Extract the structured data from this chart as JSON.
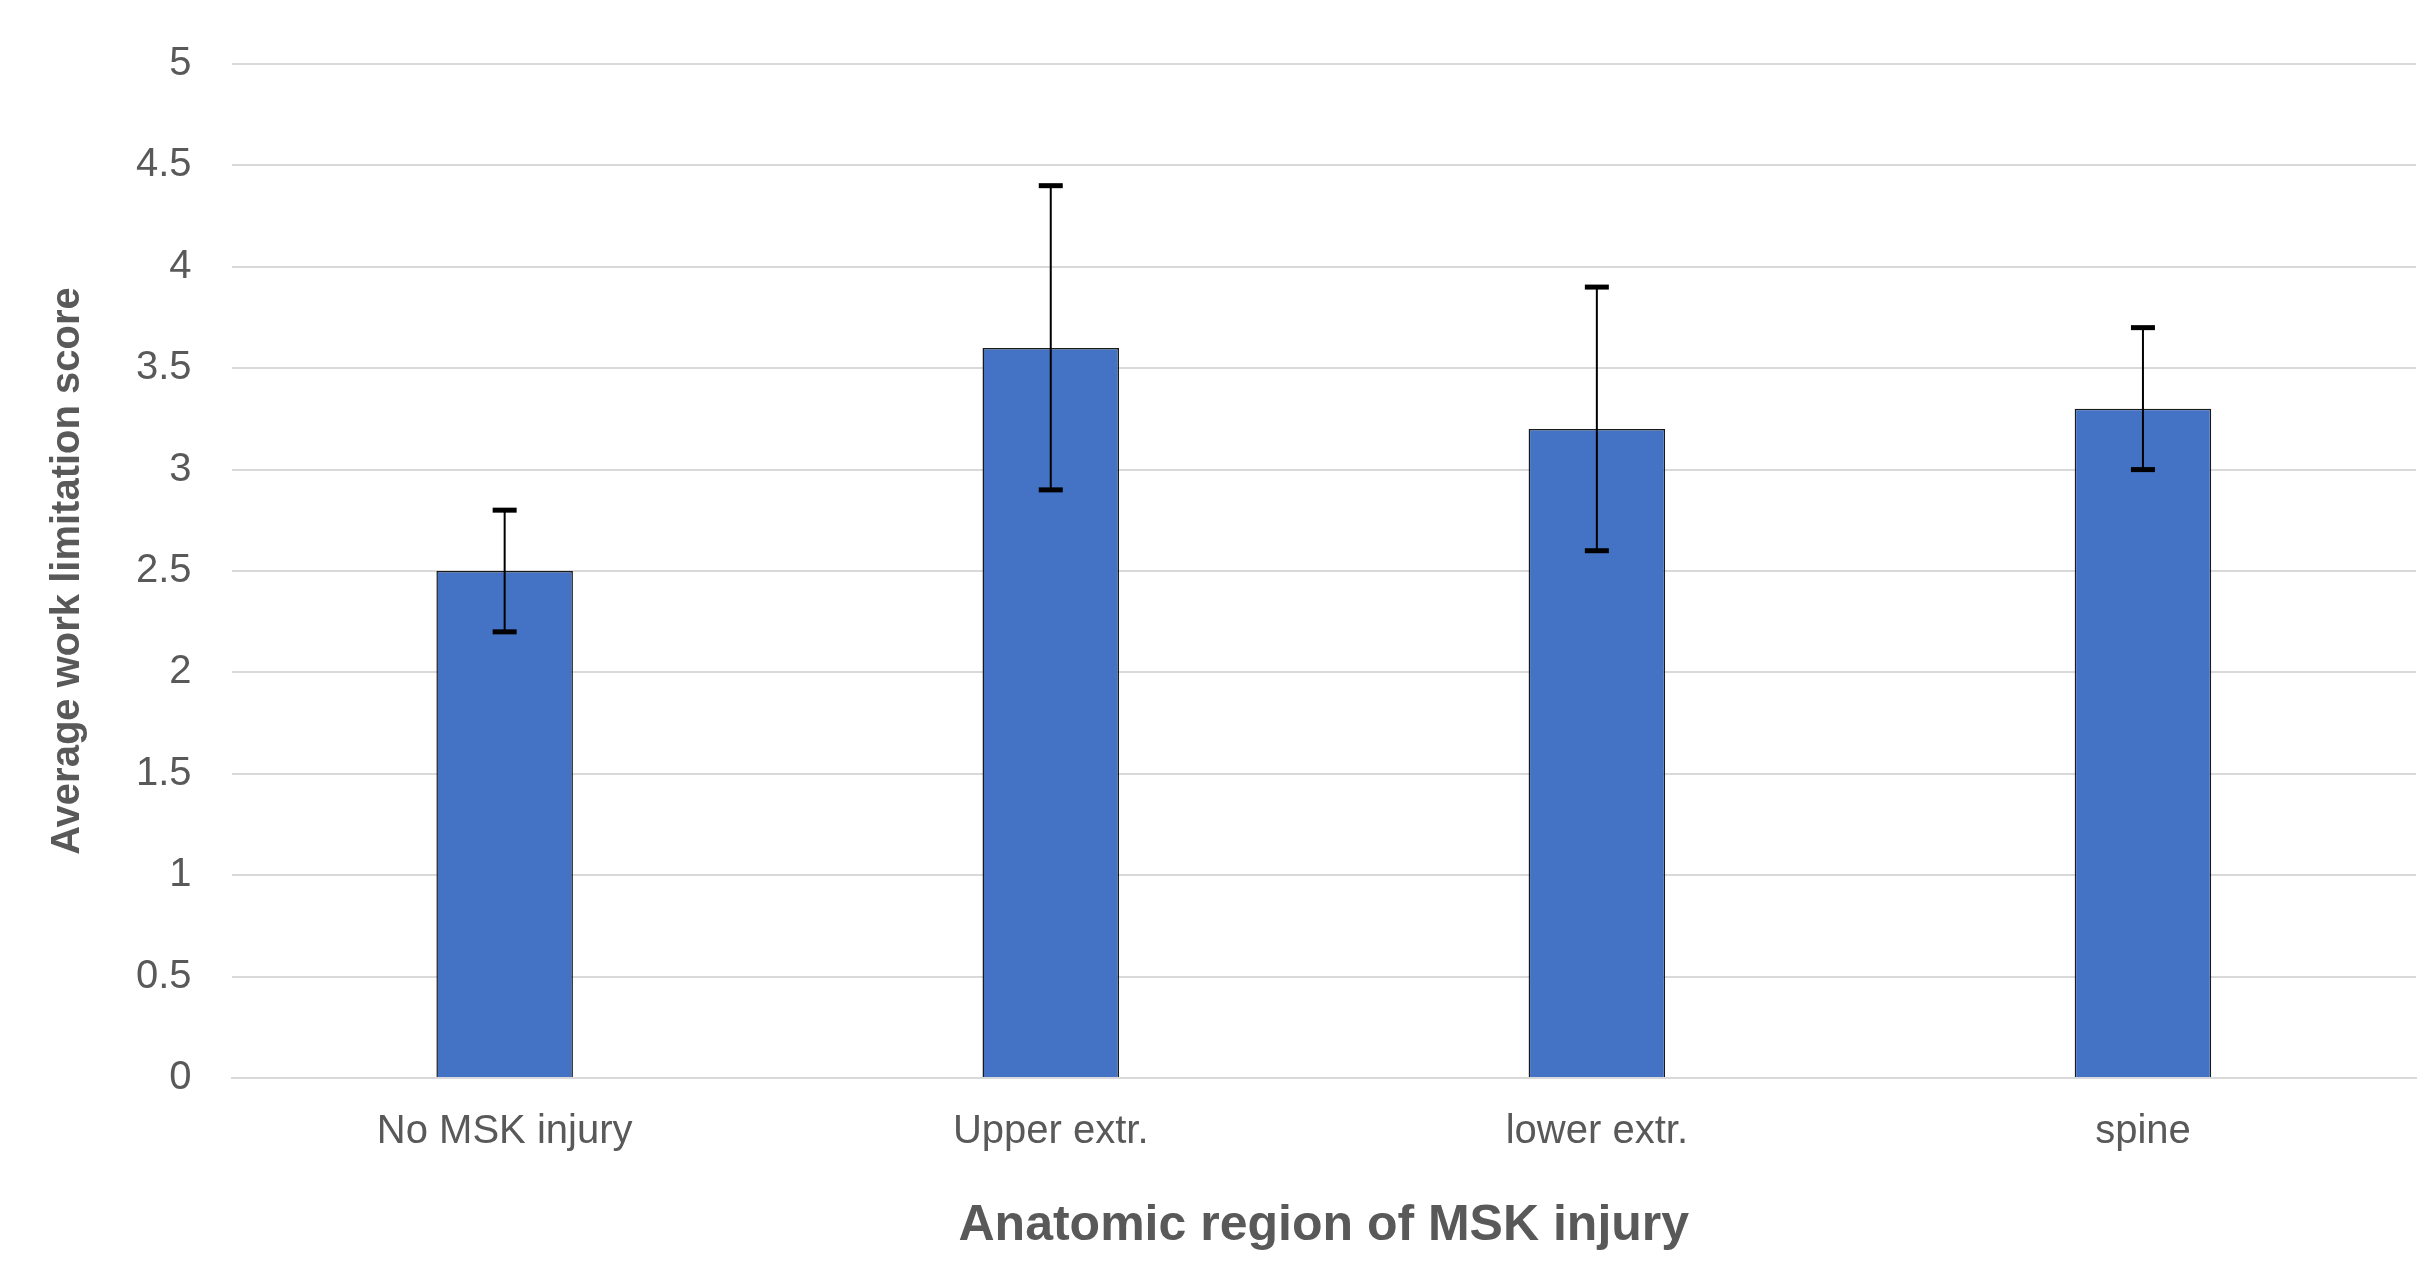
{
  "chart_data": {
    "type": "bar",
    "xlabel": "Anatomic region of MSK injury",
    "ylabel": "Average work limitation score",
    "categories": [
      "No MSK injury",
      "Upper extr.",
      "lower extr.",
      "spine"
    ],
    "values": [
      2.5,
      3.6,
      3.2,
      3.3
    ],
    "errors": [
      [
        2.2,
        2.8
      ],
      [
        2.9,
        4.4
      ],
      [
        2.6,
        3.9
      ],
      [
        3.0,
        3.7
      ]
    ],
    "color": "#4472c4",
    "ylim": [
      0,
      5
    ],
    "yticks": [
      0,
      0.5,
      1,
      1.5,
      2,
      2.5,
      3,
      3.5,
      4,
      4.5,
      5
    ],
    "grid": "y",
    "legend": false
  }
}
